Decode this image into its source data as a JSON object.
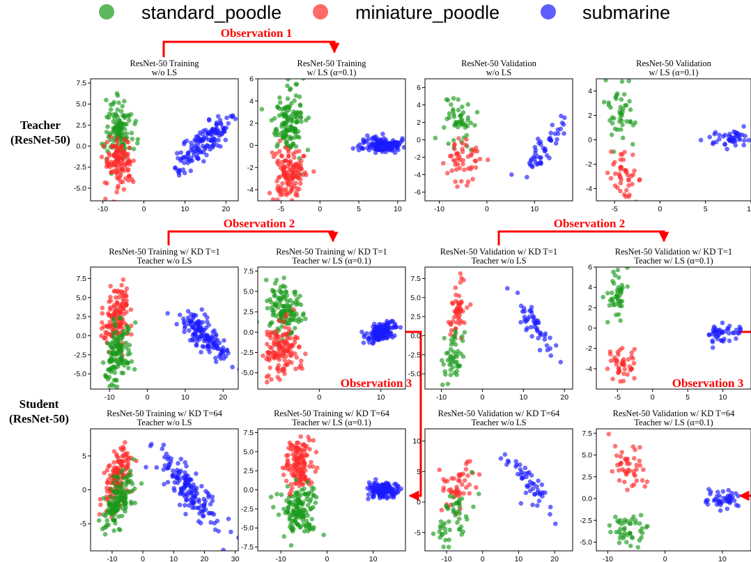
{
  "colors": {
    "standard_poodle": "#1a9a1a",
    "miniature_poodle": "#ff2a2a",
    "submarine": "#1a1aff",
    "annotation": "#ff0000"
  },
  "legend": [
    "standard_poodle",
    "miniature_poodle",
    "submarine"
  ],
  "row_labels": {
    "teacher": [
      "Teacher",
      "(ResNet-50)"
    ],
    "student": [
      "Student",
      "(ResNet-50)"
    ]
  },
  "observations": {
    "obs1": "Observation 1",
    "obs2": "Observation 2",
    "obs3": "Observation 3"
  },
  "chart_data": [
    {
      "type": "scatter",
      "title": [
        "ResNet-50 Training",
        "w/o LS"
      ],
      "xticks": [
        -10,
        0,
        10,
        20
      ],
      "yticks": [
        7.5,
        5.0,
        2.5,
        0.0,
        -2.5,
        -5.0
      ],
      "yfmt": 1,
      "xlim": [
        -13,
        23
      ],
      "ylim": [
        -6.5,
        8
      ],
      "series": [
        {
          "name": "standard_poodle",
          "center": [
            -6,
            2
          ],
          "spread": [
            1.8,
            2.0
          ],
          "n": 130
        },
        {
          "name": "miniature_poodle",
          "center": [
            -6,
            -2
          ],
          "spread": [
            2.0,
            1.6
          ],
          "n": 120
        },
        {
          "name": "submarine",
          "center": [
            14,
            0
          ],
          "spread": [
            4,
            1.8
          ],
          "n": 140,
          "corr": 0.85
        }
      ]
    },
    {
      "type": "scatter",
      "title": [
        "ResNet-50 Training",
        "w/ LS (α=0.1)"
      ],
      "xticks": [
        -5,
        0,
        5,
        10
      ],
      "yticks": [
        6,
        4,
        2,
        0,
        -2,
        -4
      ],
      "yfmt": 0,
      "xlim": [
        -8,
        11
      ],
      "ylim": [
        -5,
        6
      ]
    },
    {
      "type": "scatter",
      "title": [
        "ResNet-50 Validation",
        "w/o LS"
      ],
      "xticks": [
        -10,
        0,
        10
      ],
      "yticks": [
        6,
        4,
        2,
        0,
        -2,
        -4,
        -6
      ],
      "yfmt": 0,
      "xlim": [
        -13,
        18
      ],
      "ylim": [
        -7,
        7
      ]
    },
    {
      "type": "scatter",
      "title": [
        "ResNet-50 Validation",
        "w/ LS (α=0.1)"
      ],
      "xticks": [
        -5,
        0,
        5,
        10
      ],
      "yticks": [
        4,
        2,
        0,
        -2,
        -4
      ],
      "yfmt": 0,
      "xlim": [
        -7,
        10
      ],
      "ylim": [
        -5,
        5
      ]
    },
    {
      "type": "scatter",
      "title": [
        "ResNet-50 Training w/ KD T=1",
        "Teacher w/o LS"
      ],
      "xticks": [
        -10,
        0,
        10,
        20
      ],
      "yticks": [
        7.5,
        5.0,
        2.5,
        0.0,
        -2.5,
        -5.0
      ],
      "yfmt": 1,
      "xlim": [
        -15,
        24
      ],
      "ylim": [
        -7,
        9
      ]
    },
    {
      "type": "scatter",
      "title": [
        "ResNet-50 Training w/ KD T=1",
        "Teacher w/ LS (α=0.1)"
      ],
      "xticks": [
        0,
        10
      ],
      "yticks": [
        7.5,
        5.0,
        2.5,
        0.0,
        -2.5,
        -5.0
      ],
      "yfmt": 1,
      "xlim": [
        -10,
        14
      ],
      "ylim": [
        -7,
        8
      ]
    },
    {
      "type": "scatter",
      "title": [
        "ResNet-50 Validation w/ KD T=1",
        "Teacher w/o LS"
      ],
      "xticks": [
        -10,
        0,
        10,
        20
      ],
      "yticks": [
        7.5,
        5.0,
        2.5,
        0.0,
        -2.5,
        -5.0
      ],
      "yfmt": 1,
      "xlim": [
        -14,
        22
      ],
      "ylim": [
        -7,
        9
      ]
    },
    {
      "type": "scatter",
      "title": [
        "ResNet-50 Validation w/ KD T=1",
        "Teacher w/ LS (α=0.1)"
      ],
      "xticks": [
        -5,
        0,
        5,
        10
      ],
      "yticks": [
        6,
        4,
        2,
        0,
        -2,
        -4
      ],
      "yfmt": 0,
      "xlim": [
        -8,
        14
      ],
      "ylim": [
        -6,
        6
      ]
    },
    {
      "type": "scatter",
      "title": [
        "ResNet-50 Training w/ KD T=64",
        "Teacher w/o LS"
      ],
      "xticks": [
        -10,
        0,
        10,
        20,
        30
      ],
      "yticks": [
        5,
        0,
        -5
      ],
      "yfmt": 0,
      "xlim": [
        -17,
        31
      ],
      "ylim": [
        -9,
        9
      ]
    },
    {
      "type": "scatter",
      "title": [
        "ResNet-50 Training w/ KD T=64",
        "Teacher w/ LS (α=0.1)"
      ],
      "xticks": [
        -10,
        0,
        10
      ],
      "yticks": [
        7.5,
        5.0,
        2.5,
        0.0,
        -2.5,
        -5.0,
        -7.5
      ],
      "yfmt": 1,
      "xlim": [
        -15,
        17
      ],
      "ylim": [
        -8,
        8
      ]
    },
    {
      "type": "scatter",
      "title": [
        "ResNet-50 Validation w/ KD T=64",
        "Teacher w/o LS"
      ],
      "xticks": [
        -10,
        0,
        10,
        20
      ],
      "yticks": [
        10,
        5,
        0,
        -5
      ],
      "yfmt": 0,
      "xlim": [
        -16,
        25
      ],
      "ylim": [
        -8,
        12
      ]
    },
    {
      "type": "scatter",
      "title": [
        "ResNet-50 Validation w/ KD T=64",
        "Teacher w/ LS (α=0.1)"
      ],
      "xticks": [
        -10,
        0,
        10
      ],
      "yticks": [
        7.5,
        5.0,
        2.5,
        0.0,
        -2.5,
        -5.0
      ],
      "yfmt": 1,
      "xlim": [
        -12,
        15
      ],
      "ylim": [
        -6,
        8
      ]
    }
  ]
}
